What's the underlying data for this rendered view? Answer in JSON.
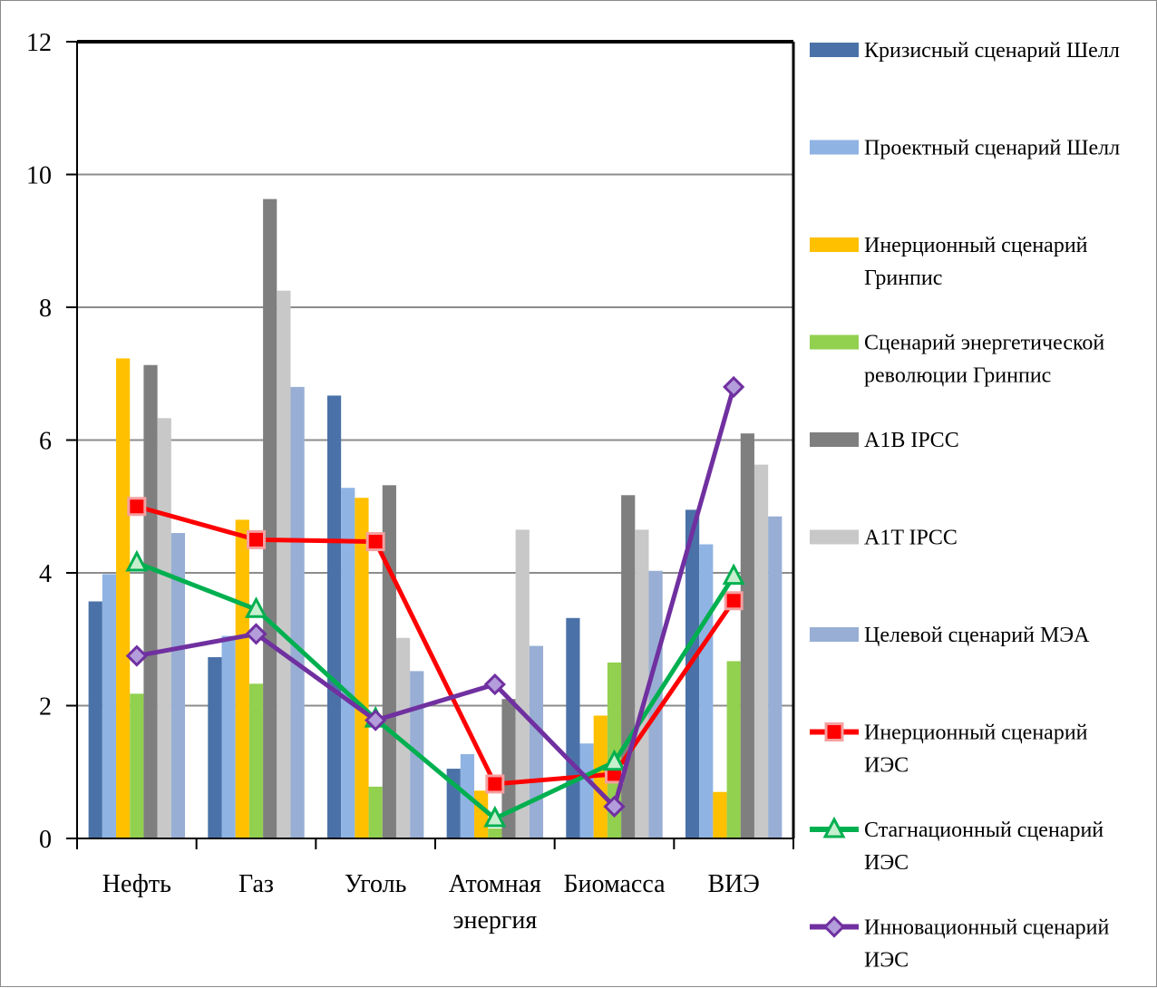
{
  "chart_data": {
    "type": "bar",
    "categories": [
      [
        "Нефть"
      ],
      [
        "Газ"
      ],
      [
        "Уголь"
      ],
      [
        "Атомная",
        "энергия"
      ],
      [
        "Биомасса"
      ],
      [
        "ВИЭ"
      ]
    ],
    "ylim": [
      0,
      12
    ],
    "yticks": [
      "0",
      "2",
      "4",
      "6",
      "8",
      "10",
      "12"
    ],
    "grid": true,
    "legend_position": "right",
    "bar_series": [
      {
        "name": [
          "Кризисный сценарий Шелл"
        ],
        "color": "#4a72a8",
        "values": [
          3.57,
          2.73,
          6.67,
          1.05,
          3.32,
          4.95
        ]
      },
      {
        "name": [
          "Проектный сценарий Шелл"
        ],
        "color": "#8fb3e3",
        "values": [
          3.98,
          3.05,
          5.28,
          1.27,
          1.43,
          4.43
        ]
      },
      {
        "name": [
          "Инерционный сценарий",
          "Гринпис"
        ],
        "color": "#ffc000",
        "values": [
          7.23,
          4.8,
          5.13,
          0.72,
          1.85,
          0.7
        ]
      },
      {
        "name": [
          "Сценарий энергетической",
          "революции Гринпис"
        ],
        "color": "#92d050",
        "values": [
          2.18,
          2.33,
          0.78,
          0.15,
          2.65,
          2.67
        ]
      },
      {
        "name": [
          "A1B  IPCC"
        ],
        "color": "#7f7f7f",
        "values": [
          7.13,
          9.63,
          5.32,
          2.1,
          5.17,
          6.1
        ]
      },
      {
        "name": [
          "A1T  IPCC"
        ],
        "color": "#c8c8c8",
        "values": [
          6.33,
          8.25,
          3.02,
          4.65,
          4.65,
          5.63
        ]
      },
      {
        "name": [
          "Целевой сценарий МЭА"
        ],
        "color": "#98aed4",
        "values": [
          4.6,
          6.8,
          2.52,
          2.9,
          4.03,
          4.85
        ]
      }
    ],
    "line_series": [
      {
        "name": [
          "Инерционный сценарий",
          "ИЭС"
        ],
        "color": "#ff0000",
        "marker": "square",
        "values": [
          5.0,
          4.5,
          4.47,
          0.82,
          0.97,
          3.58
        ]
      },
      {
        "name": [
          "Стагнационный сценарий",
          "ИЭС"
        ],
        "color": "#00b050",
        "marker": "triangle",
        "values": [
          4.15,
          3.45,
          1.8,
          0.3,
          1.15,
          3.95
        ]
      },
      {
        "name": [
          "Инновационный сценарий",
          "ИЭС"
        ],
        "color": "#7030a0",
        "marker": "diamond",
        "values": [
          2.75,
          3.08,
          1.78,
          2.32,
          0.48,
          6.8
        ]
      }
    ]
  }
}
